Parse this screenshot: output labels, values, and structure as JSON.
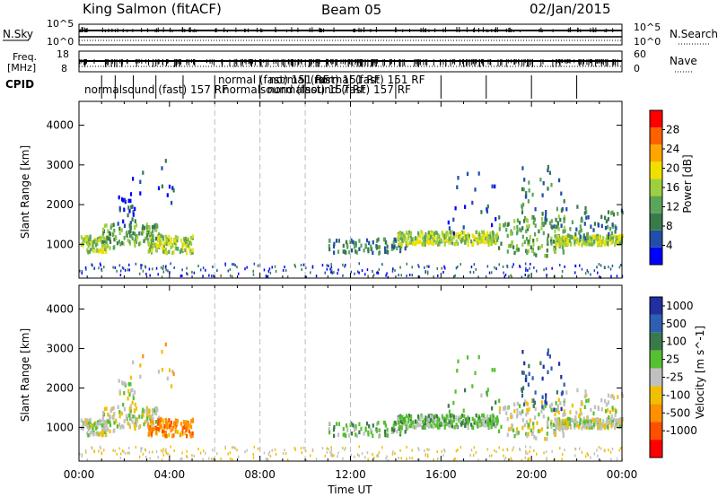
{
  "header": {
    "station": "King Salmon (fitACF)",
    "beam": "Beam 05",
    "date": "02/Jan/2015"
  },
  "strips": {
    "nsky_label": "N.Sky",
    "nsearch_label": "N.Search",
    "freq_label_line1": "Freq.",
    "freq_label_line2": "[MHz]",
    "nave_label": "Nave",
    "cpid_label": "CPID",
    "noise_left_ticks": [
      "10^5",
      "10^0"
    ],
    "noise_right_ticks": [
      "10^5",
      "10^0"
    ],
    "freq_left_ticks": [
      "18",
      "8"
    ],
    "freq_right_ticks": [
      "60",
      "0"
    ]
  },
  "cpid_labels": [
    {
      "text": "normalsound (fast) 157 RF",
      "row": 1
    },
    {
      "text": "normalsound (fast) 157 RF",
      "row": 1
    },
    {
      "text": "normalsound (fast) 157 RF",
      "row": 1
    },
    {
      "text": "normal (fast) 151 RF",
      "row": 0
    },
    {
      "text": "normal (fast) 151 RF",
      "row": 0
    },
    {
      "text": "normal (fast) 151 RF",
      "row": 0
    }
  ],
  "colors": {
    "power_scale": [
      "#0000ff",
      "#1f4fa8",
      "#3a7a4a",
      "#5aa55a",
      "#9fcf3f",
      "#f0e000",
      "#ffa500",
      "#ff6000",
      "#ff0000"
    ],
    "velocity_scale": [
      "#2030a0",
      "#2f5fb0",
      "#3a7a4a",
      "#55c030",
      "#c0c0c0",
      "#f0c000",
      "#ff9000",
      "#ff5000",
      "#ff0000"
    ]
  },
  "chart_data": [
    {
      "type": "heatmap",
      "title": "",
      "xlabel": "Time UT",
      "ylabel": "Slant Range [km]",
      "x_range": [
        "00:00",
        "24:00"
      ],
      "x_ticks": [
        "00:00",
        "04:00",
        "08:00",
        "12:00",
        "16:00",
        "20:00",
        "00:00"
      ],
      "ylim": [
        150,
        4600
      ],
      "y_ticks": [
        "1000",
        "2000",
        "3000",
        "4000"
      ],
      "colorbar": {
        "label": "Power [dB]",
        "ticks": [
          "4",
          "8",
          "12",
          "16",
          "20",
          "24",
          "28"
        ],
        "range": [
          0,
          30
        ]
      },
      "cpid_change_times_hours": [
        6.0,
        8.0,
        10.0,
        12.0
      ]
    },
    {
      "type": "heatmap",
      "title": "",
      "xlabel": "Time UT",
      "ylabel": "Slant Range [km]",
      "x_range": [
        "00:00",
        "24:00"
      ],
      "x_ticks": [
        "00:00",
        "04:00",
        "08:00",
        "12:00",
        "16:00",
        "20:00",
        "00:00"
      ],
      "ylim": [
        150,
        4600
      ],
      "y_ticks": [
        "1000",
        "2000",
        "3000",
        "4000"
      ],
      "colorbar": {
        "label": "Velocity [m s^-1]",
        "ticks": [
          "1000",
          "500",
          "100",
          "25",
          "-25",
          "-100",
          "-500",
          "-1000"
        ]
      },
      "cpid_change_times_hours": [
        6.0,
        8.0,
        10.0,
        12.0
      ]
    }
  ],
  "xaxis_label": "Time UT"
}
